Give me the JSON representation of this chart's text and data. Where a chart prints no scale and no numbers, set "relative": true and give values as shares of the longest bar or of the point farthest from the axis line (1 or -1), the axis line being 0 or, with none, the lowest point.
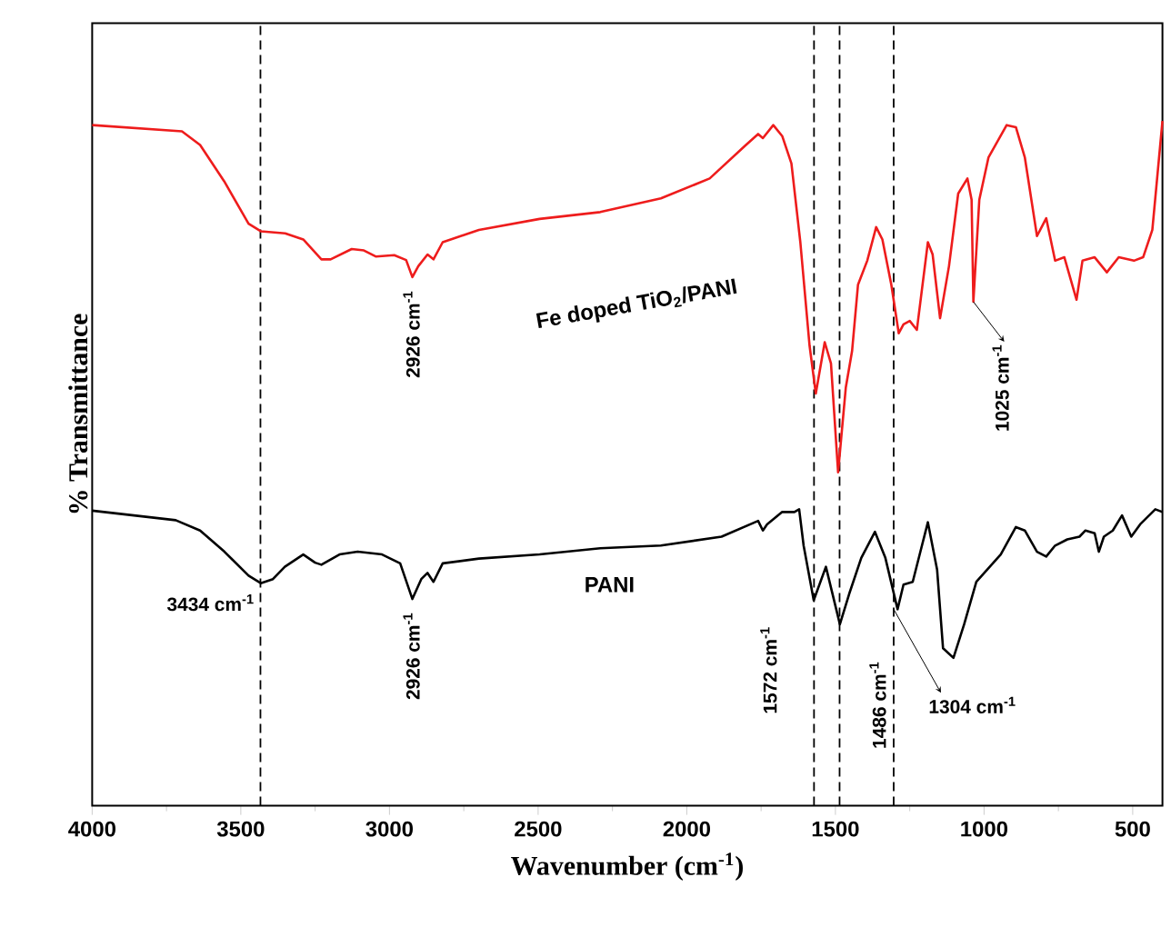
{
  "chart_data": {
    "type": "line",
    "relative": true,
    "xlabel": "Wavenumber (cm$^{-1}$)",
    "ylabel": "% Transmittance",
    "xlim": [
      4000,
      400
    ],
    "xticks": [
      4000,
      3500,
      3000,
      2500,
      2000,
      1500,
      1000,
      500
    ],
    "series": [
      {
        "name": "Fe doped TiO$_{2}$/PANI",
        "color": "#ee1c1c",
        "x": [
          4000,
          3698,
          3637,
          3556,
          3474,
          3433,
          3351,
          3290,
          3229,
          3198,
          3127,
          3086,
          3045,
          2984,
          2944,
          2923,
          2903,
          2872,
          2852,
          2821,
          2699,
          2495,
          2291,
          2087,
          1923,
          1801,
          1760,
          1744,
          1709,
          1679,
          1648,
          1618,
          1587,
          1566,
          1536,
          1515,
          1491,
          1465,
          1444,
          1424,
          1393,
          1363,
          1342,
          1312,
          1287,
          1271,
          1250,
          1226,
          1189,
          1173,
          1148,
          1118,
          1087,
          1056,
          1042,
          1036,
          1016,
          985,
          924,
          893,
          863,
          822,
          791,
          761,
          730,
          689,
          669,
          628,
          587,
          547,
          496,
          465,
          434,
          400
        ],
        "values": [
          0.994,
          0.985,
          0.965,
          0.912,
          0.85,
          0.839,
          0.836,
          0.827,
          0.798,
          0.798,
          0.813,
          0.811,
          0.802,
          0.804,
          0.797,
          0.772,
          0.788,
          0.805,
          0.798,
          0.823,
          0.841,
          0.857,
          0.867,
          0.887,
          0.916,
          0.965,
          0.981,
          0.975,
          0.994,
          0.978,
          0.938,
          0.823,
          0.672,
          0.602,
          0.677,
          0.646,
          0.487,
          0.611,
          0.664,
          0.761,
          0.796,
          0.845,
          0.827,
          0.761,
          0.69,
          0.703,
          0.708,
          0.695,
          0.823,
          0.805,
          0.712,
          0.788,
          0.894,
          0.916,
          0.885,
          0.736,
          0.885,
          0.947,
          0.994,
          0.991,
          0.947,
          0.832,
          0.858,
          0.796,
          0.801,
          0.739,
          0.796,
          0.801,
          0.779,
          0.801,
          0.796,
          0.801,
          0.841,
          1.0
        ]
      },
      {
        "name": "PANI",
        "color": "#000000",
        "x": [
          4000,
          3719,
          3637,
          3555,
          3474,
          3433,
          3392,
          3352,
          3290,
          3250,
          3229,
          3168,
          3107,
          3025,
          2964,
          2923,
          2893,
          2872,
          2852,
          2821,
          2699,
          2495,
          2291,
          2087,
          1883,
          1760,
          1744,
          1730,
          1679,
          1638,
          1622,
          1607,
          1573,
          1532,
          1485,
          1454,
          1413,
          1367,
          1332,
          1291,
          1271,
          1240,
          1189,
          1158,
          1138,
          1103,
          1067,
          1026,
          944,
          893,
          863,
          822,
          791,
          761,
          720,
          679,
          659,
          628,
          614,
          597,
          567,
          536,
          505,
          475,
          424,
          400
        ],
        "values": [
          0.431,
          0.417,
          0.402,
          0.371,
          0.336,
          0.325,
          0.331,
          0.349,
          0.367,
          0.355,
          0.352,
          0.367,
          0.371,
          0.367,
          0.354,
          0.302,
          0.331,
          0.34,
          0.327,
          0.354,
          0.361,
          0.367,
          0.376,
          0.38,
          0.393,
          0.416,
          0.402,
          0.411,
          0.429,
          0.429,
          0.433,
          0.38,
          0.3,
          0.349,
          0.265,
          0.309,
          0.362,
          0.4,
          0.362,
          0.287,
          0.323,
          0.327,
          0.414,
          0.345,
          0.23,
          0.216,
          0.265,
          0.327,
          0.367,
          0.407,
          0.402,
          0.371,
          0.364,
          0.38,
          0.389,
          0.393,
          0.402,
          0.398,
          0.371,
          0.393,
          0.402,
          0.424,
          0.393,
          0.411,
          0.433,
          0.429
        ]
      }
    ],
    "ref_lines": [
      {
        "axis": "x",
        "value": 3434,
        "line_style": "dashed",
        "color": "#000000"
      },
      {
        "axis": "x",
        "value": 1572,
        "line_style": "dashed",
        "color": "#000000"
      },
      {
        "axis": "x",
        "value": 1486,
        "line_style": "dashed",
        "color": "#000000"
      },
      {
        "axis": "x",
        "value": 1304,
        "line_style": "dashed",
        "color": "#000000"
      }
    ],
    "annotations": [
      {
        "text": "2926 cm$^{-1}$",
        "x": 2926,
        "y": 0.772
      },
      {
        "text": "1025 cm$^{-1}$",
        "x": 1036,
        "y": 0.736
      },
      {
        "text": "3434 cm$^{-1}$",
        "x": 3434,
        "y": 0.325
      },
      {
        "text": "2926 cm$^{-1}$",
        "x": 2926,
        "y": 0.302
      },
      {
        "text": "1572 cm$^{-1}$",
        "x": 1572,
        "y": 0.3
      },
      {
        "text": "1486 cm$^{-1}$",
        "x": 1486,
        "y": 0.265
      },
      {
        "text": "1304 cm$^{-1}$",
        "x": 1304,
        "y": 0.287
      }
    ]
  }
}
